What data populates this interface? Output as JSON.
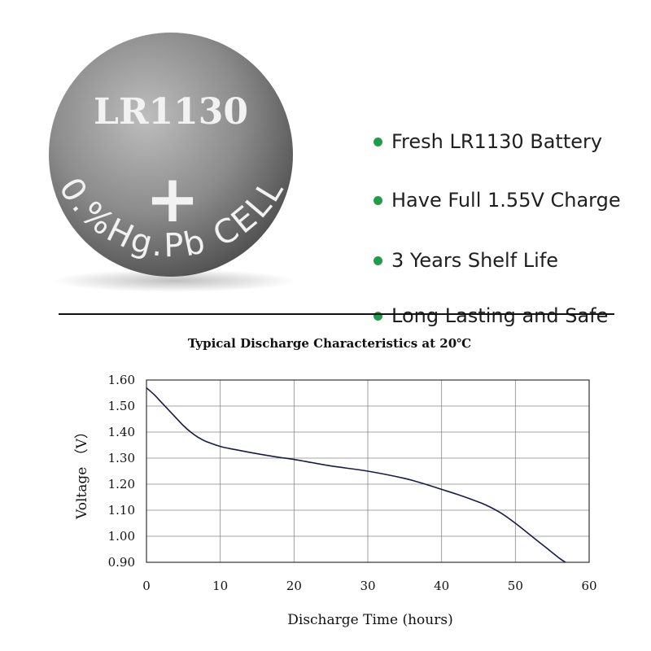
{
  "battery": {
    "model_label": "LR1130",
    "polarity_symbol": "+",
    "rim_text": "0.%Hg.Pb CELL",
    "colors": {
      "face_light": "#b8b8b8",
      "face_dark": "#555555",
      "text": "#f2f2f2"
    }
  },
  "features": [
    {
      "text": "Fresh LR1130 Battery"
    },
    {
      "text": "Have Full 1.55V Charge"
    },
    {
      "text": "3 Years Shelf Life"
    },
    {
      "text": "Long Lasting and Safe"
    }
  ],
  "bullet_color": "#1e9e4a",
  "chart_data": {
    "type": "line",
    "title": "Typical Discharge Characteristics at 20℃",
    "xlabel": "Discharge Time (hours)",
    "ylabel": "Voltage （V）",
    "xlim": [
      0,
      60
    ],
    "ylim": [
      0.9,
      1.6
    ],
    "x_ticks": [
      "0",
      "10",
      "20",
      "30",
      "40",
      "50",
      "60"
    ],
    "y_ticks": [
      "1.60",
      "1.50",
      "1.40",
      "1.30",
      "1.20",
      "1.10",
      "1.00",
      "0.90"
    ],
    "grid": true,
    "series": [
      {
        "color": "#1a1a4a",
        "x": [
          0,
          1,
          2,
          3,
          4,
          5,
          6,
          7,
          8,
          10,
          12,
          15,
          18,
          20,
          25,
          30,
          35,
          38,
          40,
          42,
          44,
          46,
          48,
          50,
          52,
          54,
          56,
          56.8
        ],
        "y": [
          1.57,
          1.545,
          1.515,
          1.485,
          1.455,
          1.425,
          1.4,
          1.38,
          1.365,
          1.345,
          1.333,
          1.317,
          1.303,
          1.295,
          1.27,
          1.25,
          1.222,
          1.198,
          1.18,
          1.162,
          1.142,
          1.12,
          1.09,
          1.05,
          1.005,
          0.96,
          0.915,
          0.9
        ]
      }
    ]
  }
}
